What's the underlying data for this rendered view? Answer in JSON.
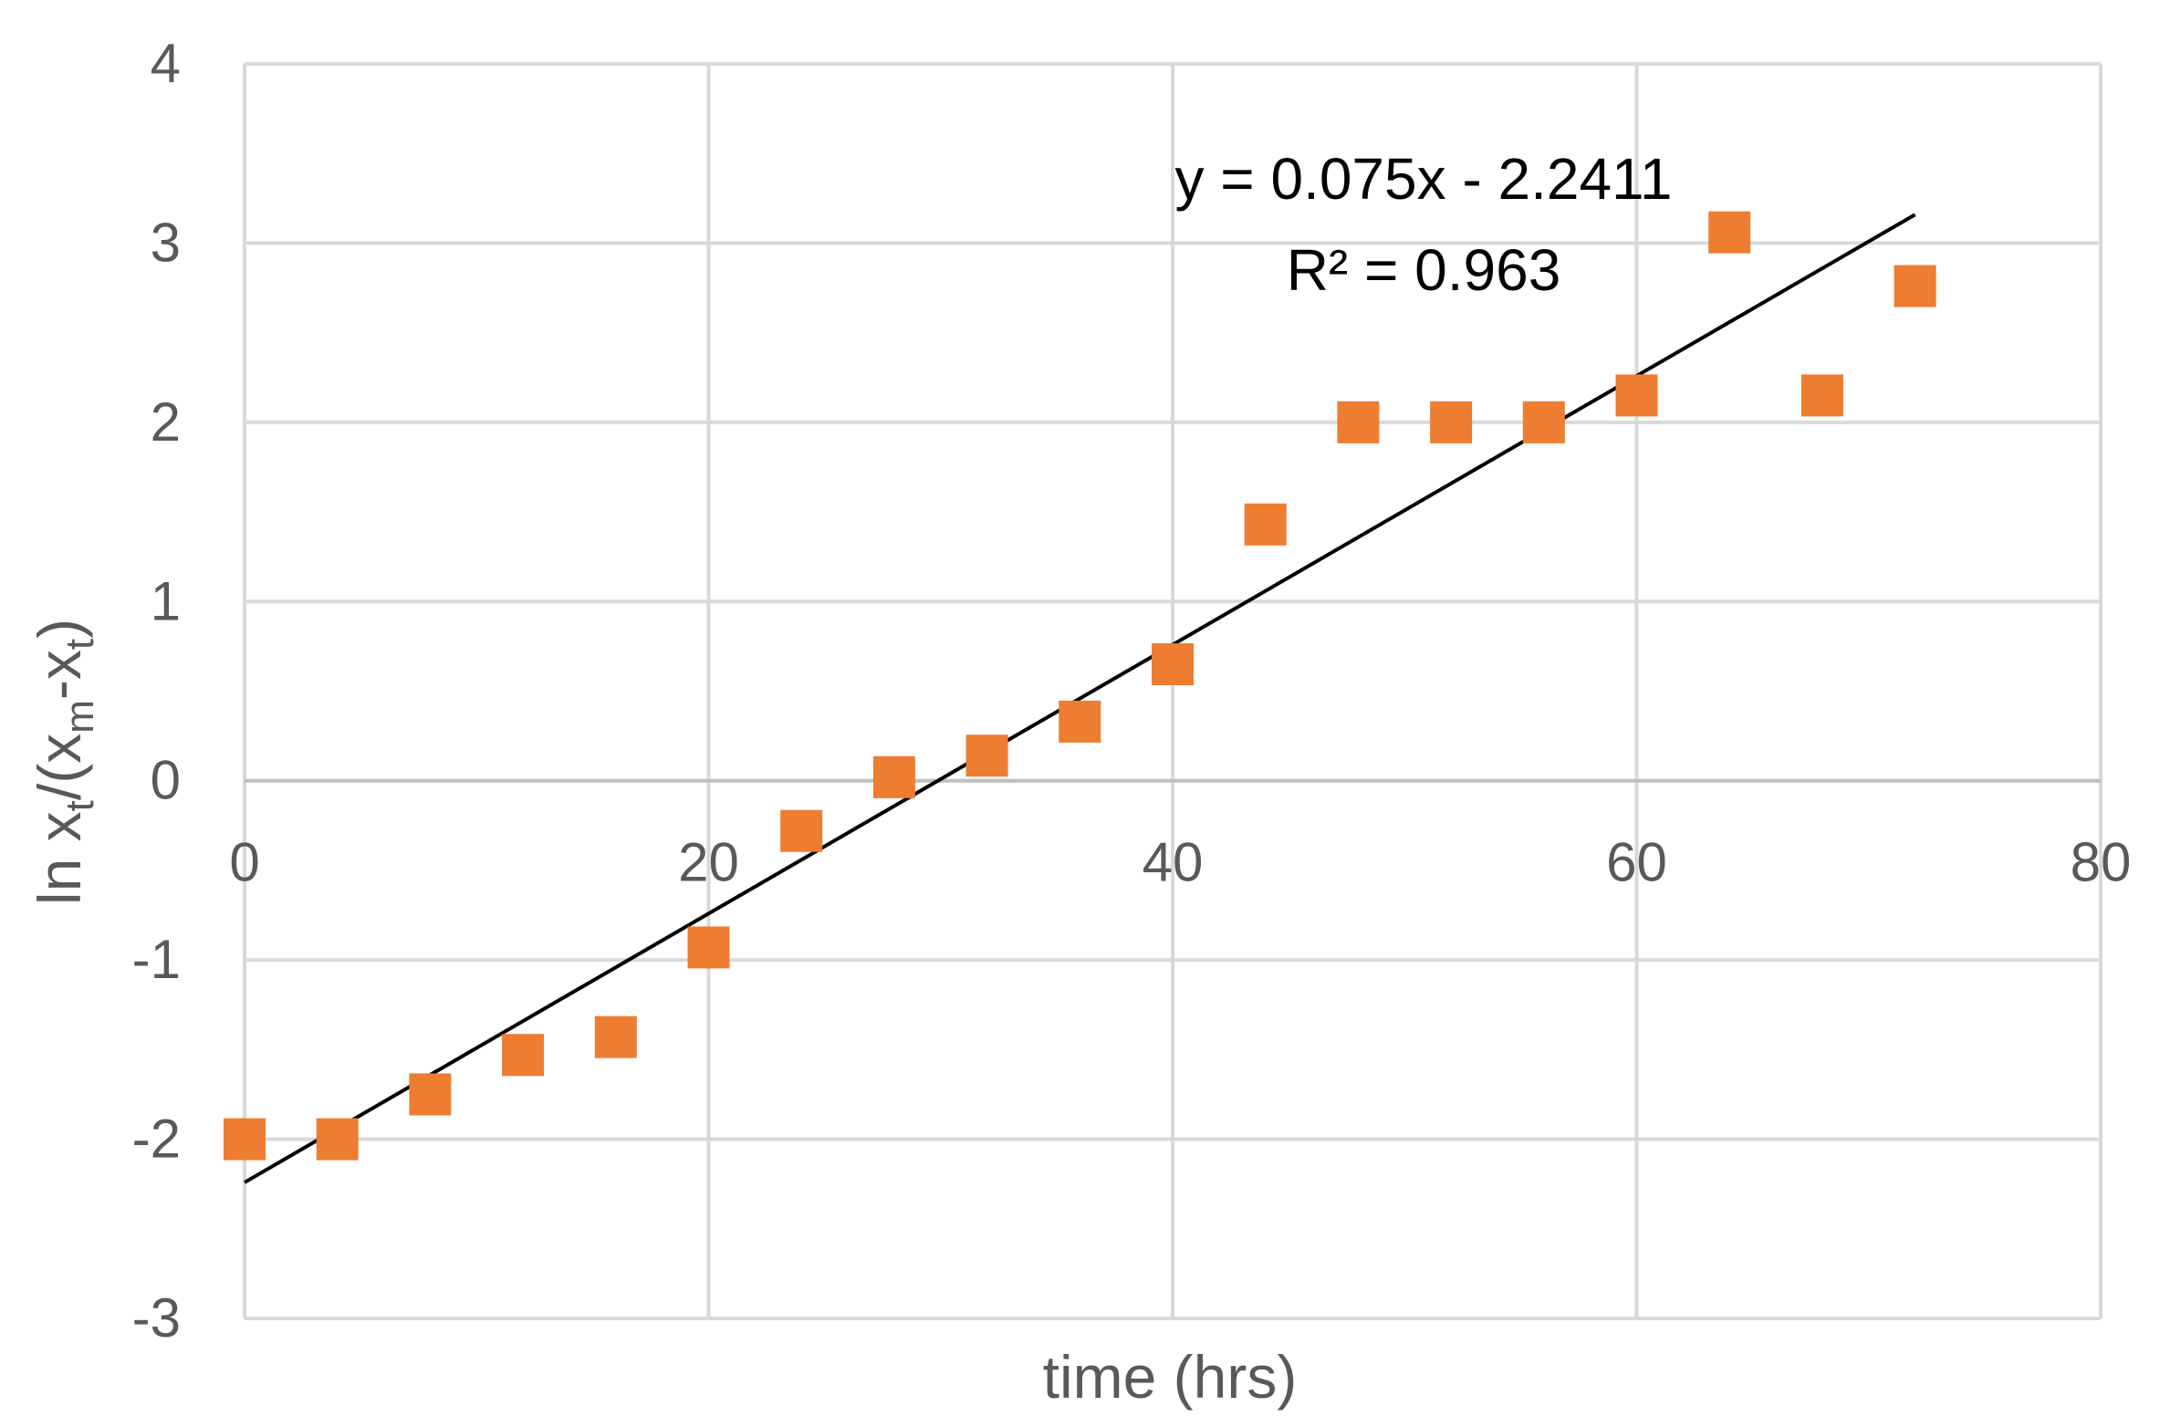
{
  "chart_data": {
    "type": "scatter",
    "xlabel": "time (hrs)",
    "ylabel": {
      "main": "ln x",
      "sub1": "t",
      "mid1": "/(x",
      "sub2": "m",
      "mid2": "-x",
      "sub3": "t",
      "end": ")"
    },
    "xlim": [
      0,
      80
    ],
    "ylim": [
      -3,
      4
    ],
    "x_ticks": [
      "0",
      "20",
      "40",
      "60",
      "80"
    ],
    "y_ticks": [
      "-3",
      "-2",
      "-1",
      "0",
      "1",
      "2",
      "3",
      "4"
    ],
    "x_tick_values": [
      0,
      20,
      40,
      60,
      80
    ],
    "y_tick_values": [
      -3,
      -2,
      -1,
      0,
      1,
      2,
      3,
      4
    ],
    "grid": true,
    "series": [
      {
        "marker": "square",
        "color": "#ED7D31",
        "points": [
          {
            "x": 0,
            "y": -2.0
          },
          {
            "x": 4,
            "y": -2.0
          },
          {
            "x": 8,
            "y": -1.75
          },
          {
            "x": 12,
            "y": -1.53
          },
          {
            "x": 16,
            "y": -1.43
          },
          {
            "x": 20,
            "y": -0.93
          },
          {
            "x": 24,
            "y": -0.28
          },
          {
            "x": 28,
            "y": 0.02
          },
          {
            "x": 32,
            "y": 0.14
          },
          {
            "x": 36,
            "y": 0.33
          },
          {
            "x": 40,
            "y": 0.65
          },
          {
            "x": 44,
            "y": 1.43
          },
          {
            "x": 48,
            "y": 2.0
          },
          {
            "x": 52,
            "y": 2.0
          },
          {
            "x": 56,
            "y": 2.0
          },
          {
            "x": 60,
            "y": 2.15
          },
          {
            "x": 64,
            "y": 3.06
          },
          {
            "x": 68,
            "y": 2.15
          },
          {
            "x": 72,
            "y": 2.76
          }
        ]
      }
    ],
    "trendline": {
      "type": "linear",
      "slope": 0.075,
      "intercept": -2.2411,
      "x_range": [
        0,
        72
      ],
      "color": "#000000",
      "equation_label": "y = 0.075x - 2.2411",
      "r2_label": "R² = 0.963"
    }
  }
}
